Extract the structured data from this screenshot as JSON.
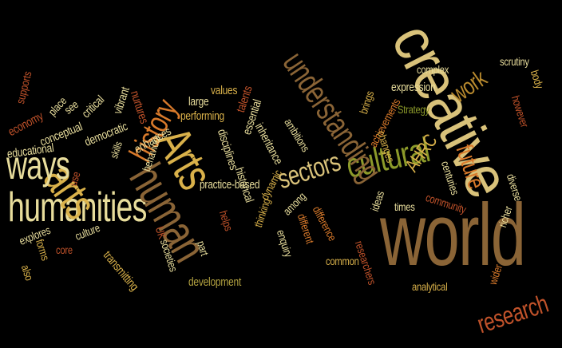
{
  "palette": {
    "background": "#000000",
    "gold": "#d9b14a",
    "pale": "#e8dd9c",
    "olive": "#8c9a2a",
    "tan": "#c9a35a",
    "brown": "#8a6436",
    "rust": "#c0522a",
    "orange": "#d97a2b",
    "ochre": "#b98a2e"
  },
  "words": [
    {
      "id": "creative",
      "text": "creative",
      "color": "#d9c27a"
    },
    {
      "id": "world",
      "text": "world",
      "color": "#8a6436"
    },
    {
      "id": "humanities",
      "text": "humanities",
      "color": "#e8dd9c"
    },
    {
      "id": "arts-lower",
      "text": "arts",
      "color": "#d9b14a"
    },
    {
      "id": "arts-cap",
      "text": "Arts",
      "color": "#d9b14a"
    },
    {
      "id": "human",
      "text": "human",
      "color": "#8a6436"
    },
    {
      "id": "cultural",
      "text": "cultural",
      "color": "#8c9a2a"
    },
    {
      "id": "ways",
      "text": "ways",
      "color": "#e8dd9c"
    },
    {
      "id": "understanding",
      "text": "understanding",
      "color": "#8a6436"
    },
    {
      "id": "sectors",
      "text": "sectors",
      "color": "#d9c27a"
    },
    {
      "id": "history",
      "text": "history",
      "color": "#d97a2b"
    },
    {
      "id": "research",
      "text": "research",
      "color": "#c0522a"
    },
    {
      "id": "future",
      "text": "future",
      "color": "#d97a2b"
    },
    {
      "id": "work",
      "text": "work",
      "color": "#b98a2e"
    },
    {
      "id": "ahrc",
      "text": "AHRC",
      "color": "#d9b14a"
    },
    {
      "id": "practice-based",
      "text": "practice-based",
      "color": "#e8dd9c"
    },
    {
      "id": "development",
      "text": "development",
      "color": "#b3a240"
    },
    {
      "id": "transmitting",
      "text": "transmitting",
      "color": "#d9b14a"
    },
    {
      "id": "performing",
      "text": "performing",
      "color": "#d9b14a"
    },
    {
      "id": "enhances",
      "text": "enhances",
      "color": "#e8dd9c"
    },
    {
      "id": "behaviour",
      "text": "behaviour",
      "color": "#e8dd9c"
    },
    {
      "id": "skills",
      "text": "skills",
      "color": "#e8dd9c"
    },
    {
      "id": "democratic",
      "text": "democratic",
      "color": "#e8dd9c"
    },
    {
      "id": "nurtures",
      "text": "nurtures",
      "color": "#c0522a"
    },
    {
      "id": "vibrant",
      "text": "vibrant",
      "color": "#e8dd9c"
    },
    {
      "id": "critical",
      "text": "critical",
      "color": "#e8dd9c"
    },
    {
      "id": "conceptual",
      "text": "conceptual",
      "color": "#e8dd9c"
    },
    {
      "id": "educational",
      "text": "educational",
      "color": "#e8dd9c"
    },
    {
      "id": "economy",
      "text": "economy",
      "color": "#c0522a"
    },
    {
      "id": "supports",
      "text": "supports",
      "color": "#c0522a"
    },
    {
      "id": "place",
      "text": "place",
      "color": "#e8dd9c"
    },
    {
      "id": "see",
      "text": "see",
      "color": "#e8dd9c"
    },
    {
      "id": "large",
      "text": "large",
      "color": "#e8dd9c"
    },
    {
      "id": "values",
      "text": "values",
      "color": "#d9b14a"
    },
    {
      "id": "talents",
      "text": "talents",
      "color": "#c0522a"
    },
    {
      "id": "essential",
      "text": "essential",
      "color": "#e8dd9c"
    },
    {
      "id": "disciplines",
      "text": "disciplines",
      "color": "#e8dd9c"
    },
    {
      "id": "historical",
      "text": "historical",
      "color": "#e8dd9c"
    },
    {
      "id": "inheritance",
      "text": "inheritance",
      "color": "#e8dd9c"
    },
    {
      "id": "ambitions",
      "text": "ambitions",
      "color": "#e8dd9c"
    },
    {
      "id": "brings",
      "text": "brings",
      "color": "#d9b14a"
    },
    {
      "id": "achievements",
      "text": "achievements",
      "color": "#d97a2b"
    },
    {
      "id": "expression",
      "text": "expression",
      "color": "#e8dd9c"
    },
    {
      "id": "complex",
      "text": "complex",
      "color": "#e8dd9c"
    },
    {
      "id": "strategy",
      "text": "Strategy",
      "color": "#8c9a2a"
    },
    {
      "id": "changes",
      "text": "changes",
      "color": "#d9b14a"
    },
    {
      "id": "centuries",
      "text": "centuries",
      "color": "#e8dd9c"
    },
    {
      "id": "scrutiny",
      "text": "scrutiny",
      "color": "#e8dd9c"
    },
    {
      "id": "body",
      "text": "body",
      "color": "#d9b14a"
    },
    {
      "id": "however",
      "text": "however",
      "color": "#c0522a"
    },
    {
      "id": "times",
      "text": "times",
      "color": "#e8dd9c"
    },
    {
      "id": "community",
      "text": "community",
      "color": "#c0522a"
    },
    {
      "id": "diverse",
      "text": "diverse",
      "color": "#e8dd9c"
    },
    {
      "id": "richer",
      "text": "richer",
      "color": "#e8dd9c"
    },
    {
      "id": "wider",
      "text": "wider",
      "color": "#d97a2b"
    },
    {
      "id": "analytical",
      "text": "analytical",
      "color": "#d9b14a"
    },
    {
      "id": "ideas",
      "text": "ideas",
      "color": "#e8dd9c"
    },
    {
      "id": "difference",
      "text": "difference",
      "color": "#d97a2b"
    },
    {
      "id": "different",
      "text": "different",
      "color": "#d97a2b"
    },
    {
      "id": "among",
      "text": "among",
      "color": "#e8dd9c"
    },
    {
      "id": "enquiry",
      "text": "enquiry",
      "color": "#e8dd9c"
    },
    {
      "id": "dynamic",
      "text": "dynamic",
      "color": "#d9b14a"
    },
    {
      "id": "thinking",
      "text": "thinking",
      "color": "#d9b14a"
    },
    {
      "id": "helps",
      "text": "helps",
      "color": "#c0522a"
    },
    {
      "id": "part",
      "text": "part",
      "color": "#e8dd9c"
    },
    {
      "id": "uk",
      "text": "UK",
      "color": "#c0522a"
    },
    {
      "id": "societies",
      "text": "societies",
      "color": "#e8dd9c"
    },
    {
      "id": "common",
      "text": "common",
      "color": "#d9b14a"
    },
    {
      "id": "researchers",
      "text": "researchers",
      "color": "#c0522a"
    },
    {
      "id": "culture",
      "text": "culture",
      "color": "#e8dd9c"
    },
    {
      "id": "forms",
      "text": "forms",
      "color": "#d9b14a"
    },
    {
      "id": "explores",
      "text": "explores",
      "color": "#e8dd9c"
    },
    {
      "id": "also",
      "text": "also",
      "color": "#d9b14a"
    },
    {
      "id": "use",
      "text": "use",
      "color": "#c0522a"
    },
    {
      "id": "core",
      "text": "core",
      "color": "#c0522a"
    }
  ]
}
